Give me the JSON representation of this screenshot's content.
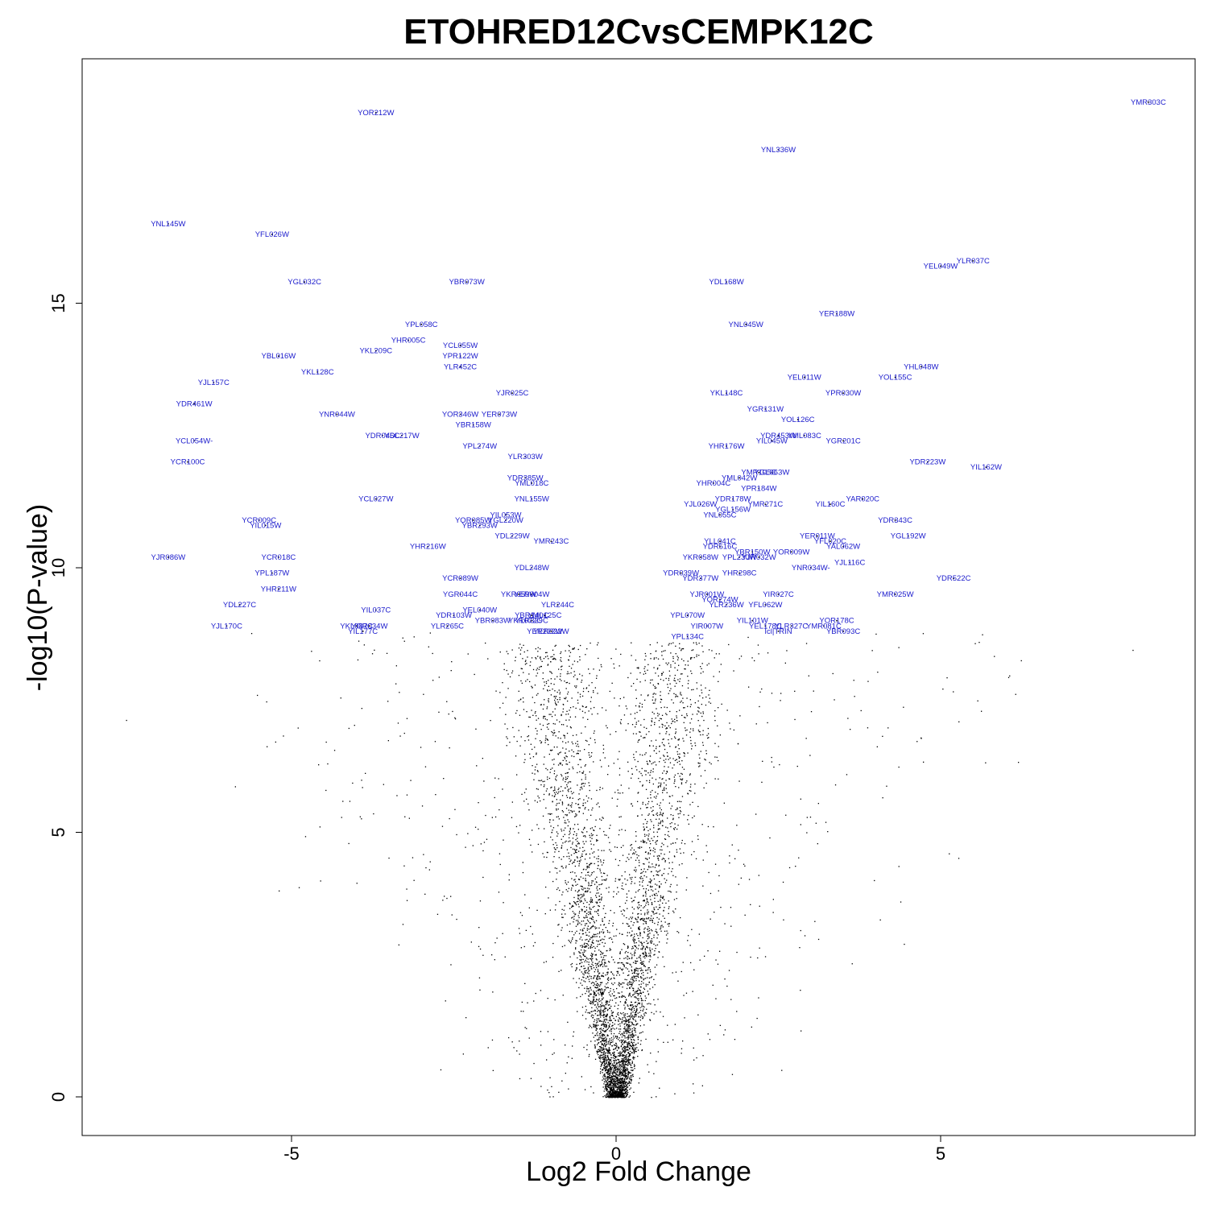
{
  "chart_data": {
    "type": "scatter",
    "title": "ETOHRED12CvsCEMPK12C",
    "xlabel": "Log2 Fold Change",
    "ylabel": "-log10(P-value)",
    "xlim": [
      -8.2,
      8.9
    ],
    "ylim": [
      -0.75,
      19.6
    ],
    "x_ticks": [
      -5,
      0,
      5
    ],
    "y_ticks": [
      0,
      5,
      10,
      15
    ],
    "grid": false,
    "point_color": "#000000",
    "label_color": "#1a1acc",
    "labeled_genes": [
      {
        "name": "YMR303C",
        "x": 8.2,
        "y": 18.8
      },
      {
        "name": "YOR212W",
        "x": -3.7,
        "y": 18.6
      },
      {
        "name": "YNL336W",
        "x": 2.5,
        "y": 17.9
      },
      {
        "name": "YNL145W",
        "x": -6.9,
        "y": 16.5
      },
      {
        "name": "YFL026W",
        "x": -5.3,
        "y": 16.3
      },
      {
        "name": "YLR037C",
        "x": 5.5,
        "y": 15.8
      },
      {
        "name": "YEL049W",
        "x": 5.0,
        "y": 15.7
      },
      {
        "name": "YGL032C",
        "x": -4.8,
        "y": 15.4
      },
      {
        "name": "YBR073W",
        "x": -2.3,
        "y": 15.4
      },
      {
        "name": "YDL168W",
        "x": 1.7,
        "y": 15.4
      },
      {
        "name": "YPL058C",
        "x": -3.0,
        "y": 14.6
      },
      {
        "name": "YNL045W",
        "x": 2.0,
        "y": 14.6
      },
      {
        "name": "YER188W",
        "x": 3.4,
        "y": 14.8
      },
      {
        "name": "YHR005C",
        "x": -3.2,
        "y": 14.3
      },
      {
        "name": "YCL055W",
        "x": -2.4,
        "y": 14.2
      },
      {
        "name": "YKL209C",
        "x": -3.7,
        "y": 14.1
      },
      {
        "name": "YBL016W",
        "x": -5.2,
        "y": 14.0
      },
      {
        "name": "YPR122W",
        "x": -2.4,
        "y": 14.0
      },
      {
        "name": "YKL128C",
        "x": -4.6,
        "y": 13.7
      },
      {
        "name": "YLR452C",
        "x": -2.4,
        "y": 13.8
      },
      {
        "name": "YHL048W",
        "x": 4.7,
        "y": 13.8
      },
      {
        "name": "YJL157C",
        "x": -6.2,
        "y": 13.5
      },
      {
        "name": "YEL011W",
        "x": 2.9,
        "y": 13.6
      },
      {
        "name": "YOL155C",
        "x": 4.3,
        "y": 13.6
      },
      {
        "name": "YJR025C",
        "x": -1.6,
        "y": 13.3
      },
      {
        "name": "YKL148C",
        "x": 1.7,
        "y": 13.3
      },
      {
        "name": "YPR030W",
        "x": 3.5,
        "y": 13.3
      },
      {
        "name": "YDR461W",
        "x": -6.5,
        "y": 13.1
      },
      {
        "name": "YGR131W",
        "x": 2.3,
        "y": 13.0
      },
      {
        "name": "YNR044W",
        "x": -4.3,
        "y": 12.9
      },
      {
        "name": "YOR346W",
        "x": -2.4,
        "y": 12.9
      },
      {
        "name": "YER073W",
        "x": -1.8,
        "y": 12.9
      },
      {
        "name": "YOL126C",
        "x": 2.8,
        "y": 12.8
      },
      {
        "name": "YBR158W",
        "x": -2.2,
        "y": 12.7
      },
      {
        "name": "YDR045C",
        "x": -3.6,
        "y": 12.5
      },
      {
        "name": "YDL217W",
        "x": -3.3,
        "y": 12.5
      },
      {
        "name": "YML083C",
        "x": 2.9,
        "y": 12.5
      },
      {
        "name": "YDR453W",
        "x": 2.5,
        "y": 12.5
      },
      {
        "name": "YIL045W",
        "x": 2.4,
        "y": 12.4
      },
      {
        "name": "YGR201C",
        "x": 3.5,
        "y": 12.4
      },
      {
        "name": "YCL054W-",
        "x": -6.5,
        "y": 12.4
      },
      {
        "name": "YPL274W",
        "x": -2.1,
        "y": 12.3
      },
      {
        "name": "YHR176W",
        "x": 1.7,
        "y": 12.3
      },
      {
        "name": "YLR303W",
        "x": -1.4,
        "y": 12.1
      },
      {
        "name": "YCR100C",
        "x": -6.6,
        "y": 12.0
      },
      {
        "name": "YDR223W",
        "x": 4.8,
        "y": 12.0
      },
      {
        "name": "YIL162W",
        "x": 5.7,
        "y": 11.9
      },
      {
        "name": "YGL063W",
        "x": 2.4,
        "y": 11.8
      },
      {
        "name": "YMR105C",
        "x": 2.2,
        "y": 11.8
      },
      {
        "name": "YDR385W",
        "x": -1.4,
        "y": 11.7
      },
      {
        "name": "YML042W",
        "x": 1.9,
        "y": 11.7
      },
      {
        "name": "YHR004C",
        "x": 1.5,
        "y": 11.6
      },
      {
        "name": "YML018C",
        "x": -1.3,
        "y": 11.6
      },
      {
        "name": "YPR184W",
        "x": 2.2,
        "y": 11.5
      },
      {
        "name": "YNL155W",
        "x": -1.3,
        "y": 11.3
      },
      {
        "name": "YCL027W",
        "x": -3.7,
        "y": 11.3
      },
      {
        "name": "YDR178W",
        "x": 1.8,
        "y": 11.3
      },
      {
        "name": "YAR020C",
        "x": 3.8,
        "y": 11.3
      },
      {
        "name": "YJL026W",
        "x": 1.3,
        "y": 11.2
      },
      {
        "name": "YIL160C",
        "x": 3.3,
        "y": 11.2
      },
      {
        "name": "YMR271C",
        "x": 2.3,
        "y": 11.2
      },
      {
        "name": "YGL156W",
        "x": 1.8,
        "y": 11.1
      },
      {
        "name": "YIL053W",
        "x": -1.7,
        "y": 11.0
      },
      {
        "name": "YNL055C",
        "x": 1.6,
        "y": 11.0
      },
      {
        "name": "YOR085W",
        "x": -2.2,
        "y": 10.9
      },
      {
        "name": "YGL220W",
        "x": -1.7,
        "y": 10.9
      },
      {
        "name": "YCR009C",
        "x": -5.5,
        "y": 10.9
      },
      {
        "name": "YIL015W",
        "x": -5.4,
        "y": 10.8
      },
      {
        "name": "YDR343C",
        "x": 4.3,
        "y": 10.9
      },
      {
        "name": "YBR293W",
        "x": -2.1,
        "y": 10.8
      },
      {
        "name": "YER011W",
        "x": 3.1,
        "y": 10.6
      },
      {
        "name": "YDL229W",
        "x": -1.6,
        "y": 10.6
      },
      {
        "name": "YGL192W",
        "x": 4.5,
        "y": 10.6
      },
      {
        "name": "YFL020C",
        "x": 3.3,
        "y": 10.5
      },
      {
        "name": "YLL041C",
        "x": 1.6,
        "y": 10.5
      },
      {
        "name": "YMR243C",
        "x": -1.0,
        "y": 10.5
      },
      {
        "name": "YDR516C",
        "x": 1.6,
        "y": 10.4
      },
      {
        "name": "YAL062W",
        "x": 3.5,
        "y": 10.4
      },
      {
        "name": "YHR216W",
        "x": -2.9,
        "y": 10.4
      },
      {
        "name": "YOR009W",
        "x": 2.7,
        "y": 10.3
      },
      {
        "name": "YKR058W",
        "x": 1.3,
        "y": 10.2
      },
      {
        "name": "YPL230W",
        "x": 1.9,
        "y": 10.2
      },
      {
        "name": "YJR032W",
        "x": 2.2,
        "y": 10.2
      },
      {
        "name": "YBR150W",
        "x": 2.1,
        "y": 10.3
      },
      {
        "name": "YCR018C",
        "x": -5.2,
        "y": 10.2
      },
      {
        "name": "YJR086W",
        "x": -6.9,
        "y": 10.2
      },
      {
        "name": "YJL116C",
        "x": 3.6,
        "y": 10.1
      },
      {
        "name": "YNR034W-",
        "x": 3.0,
        "y": 10.0
      },
      {
        "name": "YDL248W",
        "x": -1.3,
        "y": 10.0
      },
      {
        "name": "YHR298C",
        "x": 1.9,
        "y": 9.9
      },
      {
        "name": "YPL187W",
        "x": -5.3,
        "y": 9.9
      },
      {
        "name": "YDR039W",
        "x": 1.0,
        "y": 9.9
      },
      {
        "name": "YDR377W",
        "x": 1.3,
        "y": 9.8
      },
      {
        "name": "YCR089W",
        "x": -2.4,
        "y": 9.8
      },
      {
        "name": "YDR522C",
        "x": 5.2,
        "y": 9.8
      },
      {
        "name": "YHR211W",
        "x": -5.2,
        "y": 9.6
      },
      {
        "name": "YIR027C",
        "x": 2.5,
        "y": 9.5
      },
      {
        "name": "YMR025W",
        "x": 4.3,
        "y": 9.5
      },
      {
        "name": "YJR001W",
        "x": 1.4,
        "y": 9.5
      },
      {
        "name": "YER004W",
        "x": -1.3,
        "y": 9.5
      },
      {
        "name": "YGR044C",
        "x": -2.4,
        "y": 9.5
      },
      {
        "name": "YKR059W",
        "x": -1.5,
        "y": 9.5
      },
      {
        "name": "YOR274W",
        "x": 1.6,
        "y": 9.4
      },
      {
        "name": "YLR244C",
        "x": -0.9,
        "y": 9.3
      },
      {
        "name": "YFL062W",
        "x": 2.3,
        "y": 9.3
      },
      {
        "name": "YLR236W",
        "x": 1.7,
        "y": 9.3
      },
      {
        "name": "YDL227C",
        "x": -5.8,
        "y": 9.3
      },
      {
        "name": "YEL040W",
        "x": -2.1,
        "y": 9.2
      },
      {
        "name": "YIL037C",
        "x": -3.7,
        "y": 9.2
      },
      {
        "name": "YPL070W",
        "x": 1.1,
        "y": 9.1
      },
      {
        "name": "YML125C",
        "x": -1.1,
        "y": 9.1
      },
      {
        "name": "YDR103W",
        "x": -2.5,
        "y": 9.1
      },
      {
        "name": "YBR140C",
        "x": -1.3,
        "y": 9.1
      },
      {
        "name": "YBR083W",
        "x": -1.9,
        "y": 9.0
      },
      {
        "name": "YOR178C",
        "x": 3.4,
        "y": 9.0
      },
      {
        "name": "YKR072C",
        "x": -1.4,
        "y": 9.0
      },
      {
        "name": "YLR329C",
        "x": -1.3,
        "y": 9.0
      },
      {
        "name": "YIL101W",
        "x": 2.1,
        "y": 9.0
      },
      {
        "name": "YLR327C",
        "x": 2.7,
        "y": 8.9
      },
      {
        "name": "YMR081C",
        "x": 3.2,
        "y": 8.9
      },
      {
        "name": "YLR265C",
        "x": -2.6,
        "y": 8.9
      },
      {
        "name": "YGR034W",
        "x": -3.8,
        "y": 8.9
      },
      {
        "name": "YIR007W",
        "x": 1.4,
        "y": 8.9
      },
      {
        "name": "YEL178C",
        "x": 2.3,
        "y": 8.9
      },
      {
        "name": "YJL170C",
        "x": -6.0,
        "y": 8.9
      },
      {
        "name": "YKL087C",
        "x": -4.0,
        "y": 8.9
      },
      {
        "name": "YIL177C",
        "x": -3.9,
        "y": 8.8
      },
      {
        "name": "YER022W",
        "x": -1.0,
        "y": 8.8
      },
      {
        "name": "YER222W",
        "x": -1.1,
        "y": 8.8
      },
      {
        "name": "Icl|TRIN",
        "x": 2.5,
        "y": 8.8
      },
      {
        "name": "YPL134C",
        "x": 1.1,
        "y": 8.7
      },
      {
        "name": "YBR093C",
        "x": 3.5,
        "y": 8.8
      }
    ],
    "unlabeled_points_note": ""
  }
}
